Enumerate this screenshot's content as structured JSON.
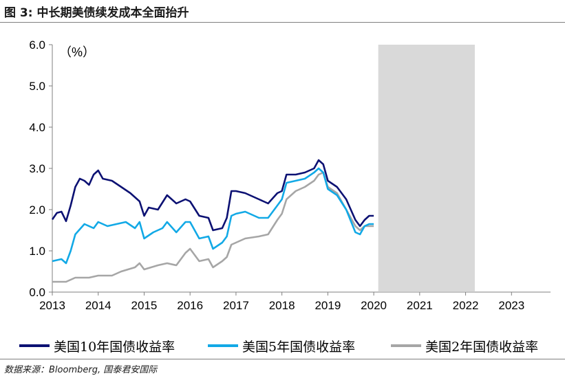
{
  "figure": {
    "title": "图 3:  中长期美债续发成本全面抬升",
    "source": "数据来源：Bloomberg, 国泰君安国际"
  },
  "colors": {
    "us10y": "#0c1173",
    "us5y": "#12a9e6",
    "us2y": "#a6a6a6",
    "shade": "#d9d9d9"
  },
  "chart_data": {
    "type": "line",
    "unit_label": "（%）",
    "ylim": [
      0.0,
      6.0
    ],
    "yticks": [
      "0.0",
      "1.0",
      "2.0",
      "3.0",
      "4.0",
      "5.0",
      "6.0"
    ],
    "xlim": [
      2013.0,
      2023.85
    ],
    "xticks": [
      "2013",
      "2014",
      "2015",
      "2016",
      "2017",
      "2018",
      "2019",
      "2020",
      "2021",
      "2022",
      "2023"
    ],
    "grid": false,
    "legend_position": "bottom",
    "shaded_period": [
      2020.1,
      2022.2
    ],
    "series": [
      {
        "name": "美国10年国债收益率",
        "color_key": "us10y",
        "points": [
          [
            2013.0,
            1.76
          ],
          [
            2013.1,
            1.92
          ],
          [
            2013.2,
            1.95
          ],
          [
            2013.3,
            1.72
          ],
          [
            2013.4,
            2.1
          ],
          [
            2013.5,
            2.55
          ],
          [
            2013.6,
            2.75
          ],
          [
            2013.7,
            2.7
          ],
          [
            2013.8,
            2.6
          ],
          [
            2013.9,
            2.85
          ],
          [
            2014.0,
            2.95
          ],
          [
            2014.1,
            2.75
          ],
          [
            2014.3,
            2.7
          ],
          [
            2014.5,
            2.55
          ],
          [
            2014.7,
            2.4
          ],
          [
            2014.9,
            2.2
          ],
          [
            2015.0,
            1.85
          ],
          [
            2015.1,
            2.05
          ],
          [
            2015.3,
            2.0
          ],
          [
            2015.5,
            2.35
          ],
          [
            2015.7,
            2.15
          ],
          [
            2015.9,
            2.25
          ],
          [
            2016.0,
            2.2
          ],
          [
            2016.2,
            1.85
          ],
          [
            2016.4,
            1.8
          ],
          [
            2016.5,
            1.5
          ],
          [
            2016.7,
            1.55
          ],
          [
            2016.8,
            1.8
          ],
          [
            2016.9,
            2.45
          ],
          [
            2017.0,
            2.45
          ],
          [
            2017.2,
            2.4
          ],
          [
            2017.5,
            2.25
          ],
          [
            2017.7,
            2.15
          ],
          [
            2017.9,
            2.4
          ],
          [
            2018.0,
            2.45
          ],
          [
            2018.1,
            2.85
          ],
          [
            2018.3,
            2.85
          ],
          [
            2018.5,
            2.9
          ],
          [
            2018.7,
            3.0
          ],
          [
            2018.8,
            3.2
          ],
          [
            2018.9,
            3.1
          ],
          [
            2019.0,
            2.7
          ],
          [
            2019.2,
            2.55
          ],
          [
            2019.4,
            2.25
          ],
          [
            2019.6,
            1.75
          ],
          [
            2019.7,
            1.6
          ],
          [
            2019.8,
            1.75
          ],
          [
            2019.9,
            1.85
          ],
          [
            2020.0,
            1.85
          ]
        ]
      },
      {
        "name": "美国5年国债收益率",
        "color_key": "us5y",
        "points": [
          [
            2013.0,
            0.75
          ],
          [
            2013.2,
            0.8
          ],
          [
            2013.3,
            0.7
          ],
          [
            2013.4,
            1.0
          ],
          [
            2013.5,
            1.4
          ],
          [
            2013.7,
            1.65
          ],
          [
            2013.9,
            1.55
          ],
          [
            2014.0,
            1.7
          ],
          [
            2014.2,
            1.6
          ],
          [
            2014.4,
            1.65
          ],
          [
            2014.6,
            1.7
          ],
          [
            2014.8,
            1.55
          ],
          [
            2014.9,
            1.7
          ],
          [
            2015.0,
            1.3
          ],
          [
            2015.2,
            1.45
          ],
          [
            2015.4,
            1.55
          ],
          [
            2015.5,
            1.7
          ],
          [
            2015.7,
            1.45
          ],
          [
            2015.9,
            1.7
          ],
          [
            2016.0,
            1.7
          ],
          [
            2016.2,
            1.3
          ],
          [
            2016.4,
            1.35
          ],
          [
            2016.5,
            1.05
          ],
          [
            2016.7,
            1.2
          ],
          [
            2016.8,
            1.35
          ],
          [
            2016.9,
            1.85
          ],
          [
            2017.0,
            1.9
          ],
          [
            2017.2,
            1.95
          ],
          [
            2017.5,
            1.8
          ],
          [
            2017.7,
            1.8
          ],
          [
            2017.9,
            2.1
          ],
          [
            2018.0,
            2.25
          ],
          [
            2018.1,
            2.65
          ],
          [
            2018.3,
            2.7
          ],
          [
            2018.5,
            2.75
          ],
          [
            2018.7,
            2.9
          ],
          [
            2018.8,
            3.0
          ],
          [
            2018.9,
            2.9
          ],
          [
            2019.0,
            2.5
          ],
          [
            2019.2,
            2.35
          ],
          [
            2019.4,
            2.0
          ],
          [
            2019.6,
            1.45
          ],
          [
            2019.7,
            1.4
          ],
          [
            2019.8,
            1.6
          ],
          [
            2019.9,
            1.65
          ],
          [
            2020.0,
            1.65
          ]
        ]
      },
      {
        "name": "美国2年国债收益率",
        "color_key": "us2y",
        "points": [
          [
            2013.0,
            0.25
          ],
          [
            2013.3,
            0.25
          ],
          [
            2013.5,
            0.35
          ],
          [
            2013.8,
            0.35
          ],
          [
            2014.0,
            0.4
          ],
          [
            2014.3,
            0.4
          ],
          [
            2014.5,
            0.5
          ],
          [
            2014.8,
            0.6
          ],
          [
            2014.9,
            0.7
          ],
          [
            2015.0,
            0.55
          ],
          [
            2015.3,
            0.65
          ],
          [
            2015.5,
            0.7
          ],
          [
            2015.7,
            0.65
          ],
          [
            2015.9,
            0.95
          ],
          [
            2016.0,
            1.05
          ],
          [
            2016.2,
            0.75
          ],
          [
            2016.4,
            0.8
          ],
          [
            2016.5,
            0.6
          ],
          [
            2016.7,
            0.75
          ],
          [
            2016.8,
            0.85
          ],
          [
            2016.9,
            1.15
          ],
          [
            2017.0,
            1.2
          ],
          [
            2017.2,
            1.3
          ],
          [
            2017.5,
            1.35
          ],
          [
            2017.7,
            1.4
          ],
          [
            2017.9,
            1.75
          ],
          [
            2018.0,
            1.9
          ],
          [
            2018.1,
            2.25
          ],
          [
            2018.3,
            2.45
          ],
          [
            2018.5,
            2.55
          ],
          [
            2018.7,
            2.7
          ],
          [
            2018.8,
            2.85
          ],
          [
            2018.9,
            2.9
          ],
          [
            2019.0,
            2.55
          ],
          [
            2019.2,
            2.4
          ],
          [
            2019.4,
            2.0
          ],
          [
            2019.6,
            1.6
          ],
          [
            2019.7,
            1.5
          ],
          [
            2019.8,
            1.6
          ],
          [
            2019.9,
            1.6
          ],
          [
            2020.0,
            1.6
          ]
        ]
      }
    ]
  }
}
